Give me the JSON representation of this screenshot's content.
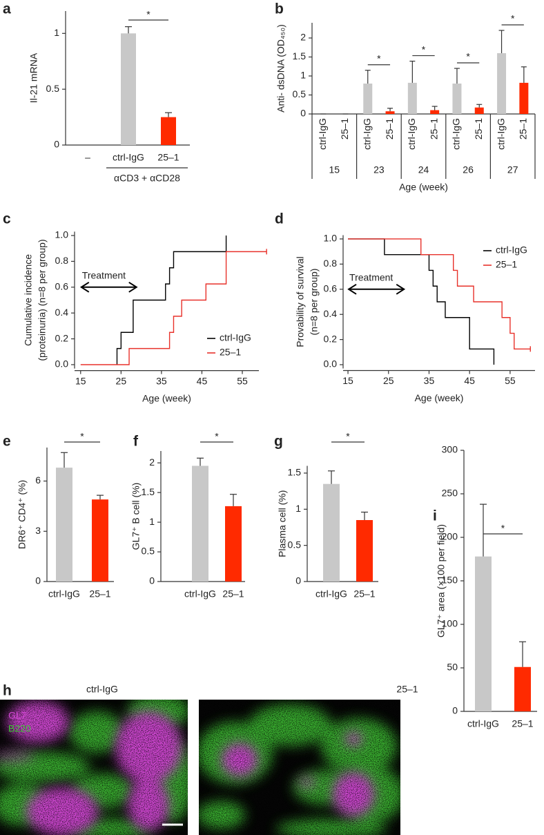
{
  "chart_data": [
    {
      "type": "bar",
      "panel": "a",
      "ylabel": "Il-21 mRNA",
      "categories": [
        "–",
        "ctrl-IgG",
        "25–1"
      ],
      "values": [
        null,
        1.0,
        0.25
      ],
      "errors": [
        null,
        0.06,
        0.04
      ],
      "colors": [
        null,
        "#c8c8c8",
        "#ff2a00"
      ],
      "ylim": [
        0,
        1.2
      ],
      "yticks": [
        0,
        0.5,
        1
      ],
      "significance": "*",
      "group_label": "αCD3 + αCD28"
    },
    {
      "type": "grouped_bar",
      "panel": "b",
      "ylabel": "Anti- dsDNA (OD₄₅₀)",
      "xlabel": "Age (week)",
      "categories": [
        "15",
        "23",
        "24",
        "26",
        "27"
      ],
      "series": [
        {
          "name": "ctrl-IgG",
          "color": "#c8c8c8",
          "values": [
            0,
            0.8,
            0.82,
            0.8,
            1.6
          ],
          "errors": [
            0,
            0.35,
            0.57,
            0.4,
            0.6
          ]
        },
        {
          "name": "25–1",
          "color": "#ff2a00",
          "values": [
            0,
            0.07,
            0.1,
            0.17,
            0.82
          ],
          "errors": [
            0,
            0.08,
            0.1,
            0.08,
            0.42
          ]
        }
      ],
      "ylim": [
        0,
        2.4
      ],
      "yticks": [
        0,
        0.5,
        1,
        1.5,
        2
      ],
      "significance": [
        null,
        "*",
        "*",
        "*",
        "*"
      ]
    },
    {
      "type": "step",
      "panel": "c",
      "ylabel": [
        "Cumulative incidence",
        "(proteinuria) (n=8 per group)"
      ],
      "xlabel": "Age (week)",
      "annotation": "Treatment",
      "legend": "lower right",
      "series": [
        {
          "name": "ctrl-IgG",
          "color": "#000000",
          "x": [
            24,
            24,
            25,
            28,
            36,
            37,
            38,
            51
          ],
          "values": [
            0,
            0.125,
            0.25,
            0.5,
            0.625,
            0.75,
            0.875,
            1.0
          ]
        },
        {
          "name": "25–1",
          "color": "#e8312a",
          "x": [
            15,
            27,
            37,
            38,
            40,
            46,
            51,
            61
          ],
          "values": [
            0,
            0.125,
            0.25,
            0.375,
            0.5,
            0.625,
            0.875,
            0.875
          ]
        }
      ],
      "xlim": [
        13.5,
        62
      ],
      "xticks": [
        15,
        25,
        35,
        45,
        55
      ],
      "ylim": [
        -0.03,
        1.03
      ],
      "yticks": [
        {
          "value": 0,
          "label": "0.0"
        },
        {
          "value": 0.2,
          "label": "0.2"
        },
        {
          "value": 0.4,
          "label": "0.4"
        },
        {
          "value": 0.6,
          "label": "0.6"
        },
        {
          "value": 0.8,
          "label": "0.8"
        },
        {
          "value": 1,
          "label": "1.0"
        }
      ]
    },
    {
      "type": "step",
      "panel": "d",
      "ylabel": [
        "Provability of survival",
        "(n=8 per group)"
      ],
      "xlabel": "Age (week)",
      "annotation": "Treatment",
      "legend": "upper right",
      "series": [
        {
          "name": "ctrl-IgG",
          "color": "#000000",
          "x": [
            15,
            24,
            35,
            36,
            37,
            39,
            45,
            51
          ],
          "values": [
            1,
            0.875,
            0.75,
            0.625,
            0.5,
            0.375,
            0.125,
            0
          ]
        },
        {
          "name": "25–1",
          "color": "#e8312a",
          "x": [
            15,
            33,
            41,
            42,
            46,
            53,
            55,
            56,
            60
          ],
          "values": [
            1,
            0.875,
            0.75,
            0.625,
            0.5,
            0.375,
            0.25,
            0.125,
            0.125
          ]
        }
      ],
      "xlim": [
        13.8,
        62
      ],
      "xticks": [
        15,
        25,
        35,
        45,
        55
      ],
      "ylim": [
        -0.03,
        1.03
      ],
      "yticks": [
        {
          "value": 0,
          "label": "0.0"
        },
        {
          "value": 0.2,
          "label": "0.2"
        },
        {
          "value": 0.4,
          "label": "0.4"
        },
        {
          "value": 0.6,
          "label": "0.6"
        },
        {
          "value": 0.8,
          "label": "0.8"
        },
        {
          "value": 1,
          "label": "1.0"
        }
      ]
    },
    {
      "type": "bar",
      "panel": "e",
      "ylabel": "DR6⁺ CD4⁺ (%)",
      "categories": [
        "ctrl-IgG",
        "25–1"
      ],
      "values": [
        6.8,
        4.9
      ],
      "errors": [
        0.9,
        0.25
      ],
      "colors": [
        "#c8c8c8",
        "#ff2a00"
      ],
      "ylim": [
        0,
        8
      ],
      "yticks": [
        0,
        3,
        6
      ],
      "significance": "*"
    },
    {
      "type": "bar",
      "panel": "f",
      "ylabel": "GL7⁺ B cell (%)",
      "categories": [
        "ctrl-IgG",
        "25–1"
      ],
      "values": [
        1.95,
        1.27
      ],
      "errors": [
        0.13,
        0.2
      ],
      "colors": [
        "#c8c8c8",
        "#ff2a00"
      ],
      "ylim": [
        0,
        2.2
      ],
      "yticks": [
        0,
        0.5,
        1,
        1.5,
        2
      ],
      "significance": "*"
    },
    {
      "type": "bar",
      "panel": "g",
      "ylabel": "Plasma cell (%)",
      "categories": [
        "ctrl-IgG",
        "25–1"
      ],
      "values": [
        1.35,
        0.85
      ],
      "errors": [
        0.18,
        0.11
      ],
      "colors": [
        "#c8c8c8",
        "#ff2a00"
      ],
      "ylim": [
        0,
        1.6
      ],
      "yticks": [
        0,
        0.5,
        1,
        1.5
      ],
      "significance": "*"
    },
    {
      "type": "bar",
      "panel": "i",
      "ylabel": "GL7⁺ area  (×100 per field)",
      "categories": [
        "ctrl-IgG",
        "25–1"
      ],
      "values": [
        178,
        51
      ],
      "errors": [
        60,
        29
      ],
      "colors": [
        "#c8c8c8",
        "#ff2a00"
      ],
      "ylim": [
        0,
        300
      ],
      "yticks": [
        0,
        50,
        100,
        150,
        200,
        250,
        300
      ],
      "significance": "*"
    }
  ],
  "image_panel": {
    "panel": "h",
    "titles": [
      "ctrl-IgG",
      "25–1"
    ],
    "stains": [
      "GL7",
      "B220"
    ]
  }
}
